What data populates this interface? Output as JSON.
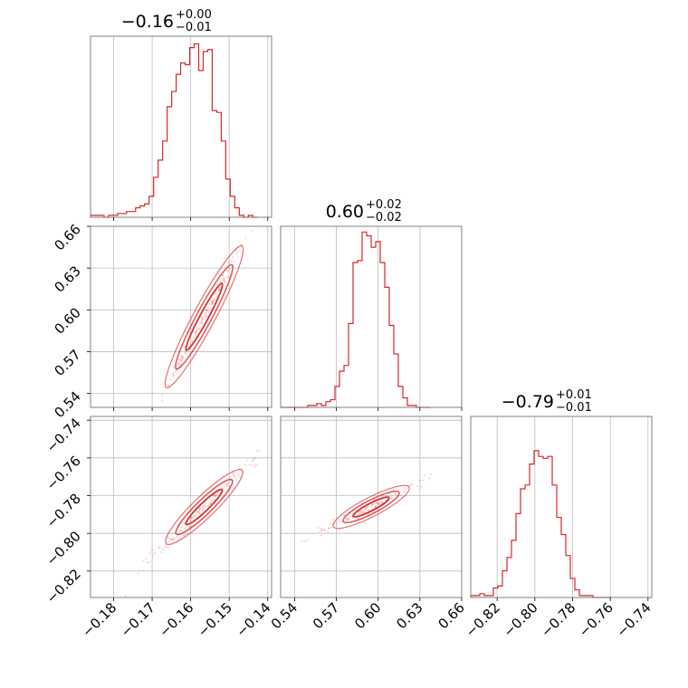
{
  "chart_data": {
    "type": "corner",
    "color": "#d62728",
    "parameters": [
      {
        "title_value": "−0.16",
        "title_plus": "+0.00",
        "title_minus": "−0.01",
        "range": [
          -0.186,
          -0.139
        ],
        "ticks": [
          -0.18,
          -0.17,
          -0.16,
          -0.15,
          -0.14
        ],
        "tick_labels": [
          "−0.18",
          "−0.17",
          "−0.16",
          "−0.15",
          "−0.14"
        ]
      },
      {
        "title_value": "0.60",
        "title_plus": "+0.02",
        "title_minus": "−0.02",
        "range": [
          0.53,
          0.66
        ],
        "ticks": [
          0.54,
          0.57,
          0.6,
          0.63,
          0.66
        ],
        "tick_labels": [
          "0.54",
          "0.57",
          "0.60",
          "0.63",
          "0.66"
        ]
      },
      {
        "title_value": "−0.79",
        "title_plus": "+0.01",
        "title_minus": "−0.01",
        "range": [
          -0.834,
          -0.738
        ],
        "ticks": [
          -0.82,
          -0.8,
          -0.78,
          -0.76,
          -0.74
        ],
        "tick_labels": [
          "−0.82",
          "−0.80",
          "−0.78",
          "−0.76",
          "−0.74"
        ]
      }
    ],
    "histograms": [
      {
        "param": 0,
        "bin_start": -0.186,
        "bin_width": 0.00117,
        "counts": [
          1,
          1,
          1,
          0,
          1,
          1,
          2,
          2,
          3,
          3,
          5,
          6,
          7,
          11,
          21,
          30,
          40,
          58,
          66,
          75,
          81,
          80,
          89,
          91,
          77,
          87,
          88,
          56,
          55,
          40,
          20,
          11,
          5,
          1,
          0,
          1,
          0
        ]
      },
      {
        "param": 1,
        "bin_start": 0.53,
        "bin_width": 0.00325,
        "counts": [
          0,
          0,
          0,
          0,
          0,
          0,
          1,
          1,
          2,
          1,
          3,
          4,
          11,
          19,
          22,
          44,
          76,
          77,
          92,
          90,
          84,
          87,
          76,
          63,
          43,
          28,
          11,
          5,
          1,
          1,
          0,
          0,
          0
        ]
      },
      {
        "param": 2,
        "bin_start": -0.834,
        "bin_width": 0.0024,
        "counts": [
          1,
          1,
          2,
          1,
          1,
          5,
          6,
          14,
          21,
          30,
          44,
          57,
          59,
          70,
          77,
          74,
          73,
          74,
          59,
          42,
          33,
          22,
          10,
          4,
          1,
          1,
          1,
          0,
          0,
          0,
          0
        ]
      }
    ],
    "hist_ylim": [
      0,
      95
    ],
    "contours": [
      {
        "x_param": 0,
        "y_param": 1,
        "center": [
          -0.1565,
          0.595
        ],
        "slope": 5.17,
        "widths": [
          0.0025,
          0.005,
          0.0075
        ]
      },
      {
        "x_param": 0,
        "y_param": 2,
        "center": [
          -0.1565,
          -0.786
        ],
        "slope": 1.98,
        "widths": [
          0.0018,
          0.0036,
          0.0054
        ]
      },
      {
        "x_param": 1,
        "y_param": 2,
        "center": [
          0.595,
          -0.786
        ],
        "slope": 0.383,
        "widths": [
          0.0015,
          0.003,
          0.0045
        ]
      }
    ]
  }
}
